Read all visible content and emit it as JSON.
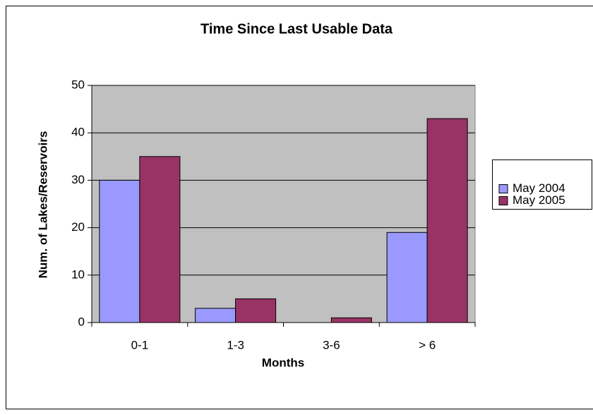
{
  "chart_data": {
    "type": "bar",
    "title": "Time Since Last Usable Data",
    "x_label": "Months",
    "y_label": "Num. of Lakes/Reservoirs",
    "categories": [
      "0-1",
      "1-3",
      "3-6",
      "> 6"
    ],
    "series": [
      {
        "name": "May 2004",
        "color": "#9999ff",
        "values": [
          30,
          3,
          0,
          19
        ]
      },
      {
        "name": "May 2005",
        "color": "#993366",
        "values": [
          35,
          5,
          1,
          43
        ]
      }
    ],
    "ylim": [
      0,
      50
    ],
    "yticks": [
      0,
      10,
      20,
      30,
      40,
      50
    ],
    "grid": true,
    "legend": "right"
  }
}
